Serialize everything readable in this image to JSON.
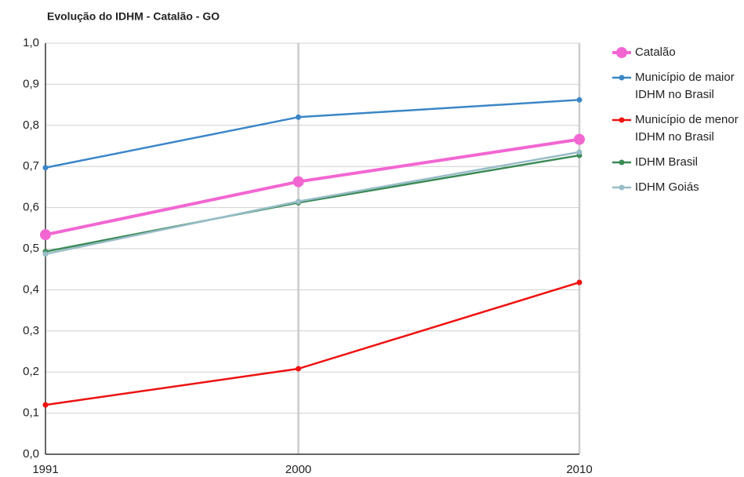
{
  "chart_data": {
    "type": "line",
    "title": "Evolução do IDHM - Catalão - GO",
    "x": [
      1991,
      2000,
      2010
    ],
    "xlim": [
      1991,
      2010
    ],
    "xticks": [
      1991,
      2000,
      2010
    ],
    "ylim": [
      0,
      1
    ],
    "yticks": [
      {
        "value": 0,
        "label": "0,0"
      },
      {
        "value": 0.1,
        "label": "0,1"
      },
      {
        "value": 0.2,
        "label": "0,2"
      },
      {
        "value": 0.3,
        "label": "0,3"
      },
      {
        "value": 0.4,
        "label": "0,4"
      },
      {
        "value": 0.5,
        "label": "0,5"
      },
      {
        "value": 0.6,
        "label": "0,6"
      },
      {
        "value": 0.7,
        "label": "0,7"
      },
      {
        "value": 0.8,
        "label": "0,8"
      },
      {
        "value": 0.9,
        "label": "0,9"
      },
      {
        "value": 1,
        "label": "1,0"
      }
    ],
    "grid": true,
    "legend": "right",
    "series": [
      {
        "name": "Catalão",
        "color": "#f266d2",
        "values": [
          0.534,
          0.663,
          0.766
        ]
      },
      {
        "name": "Município de maior IDHM no Brasil",
        "color": "#3b86c6",
        "values": [
          0.697,
          0.82,
          0.862
        ]
      },
      {
        "name": "Município de menor IDHM no Brasil",
        "color": "#ee1111",
        "values": [
          0.12,
          0.208,
          0.418
        ]
      },
      {
        "name": "IDHM Brasil",
        "color": "#3a8a55",
        "values": [
          0.493,
          0.612,
          0.727
        ]
      },
      {
        "name": "IDHM Goiás",
        "color": "#98bcc8",
        "values": [
          0.487,
          0.615,
          0.735
        ]
      }
    ]
  }
}
